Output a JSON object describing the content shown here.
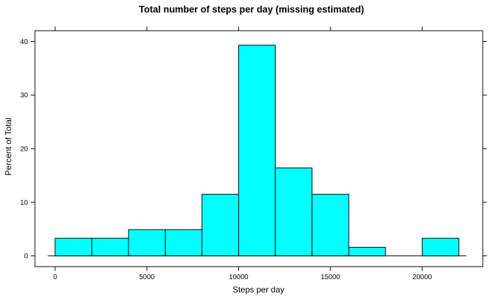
{
  "chart_data": {
    "type": "bar",
    "title": "Total number of steps per day (missing estimated)",
    "xlabel": "Steps per day",
    "ylabel": "Percent of Total",
    "bin_edges": [
      0,
      2000,
      4000,
      6000,
      8000,
      10000,
      12000,
      14000,
      16000,
      18000,
      20000,
      22000
    ],
    "values": [
      3.3,
      3.3,
      4.9,
      4.9,
      11.5,
      39.3,
      16.4,
      11.5,
      1.6,
      0,
      3.3
    ],
    "xlim": [
      -1100,
      23300
    ],
    "ylim": [
      -2.0,
      42.0
    ],
    "xticks": [
      0,
      5000,
      10000,
      15000,
      20000
    ],
    "xtick_labels": [
      "0",
      "5000",
      "10000",
      "15000",
      "20000"
    ],
    "yticks": [
      0,
      10,
      20,
      30,
      40
    ],
    "ytick_labels": [
      "0",
      "10",
      "20",
      "30",
      "40"
    ],
    "bar_color": "#00ffff",
    "grid": false
  }
}
